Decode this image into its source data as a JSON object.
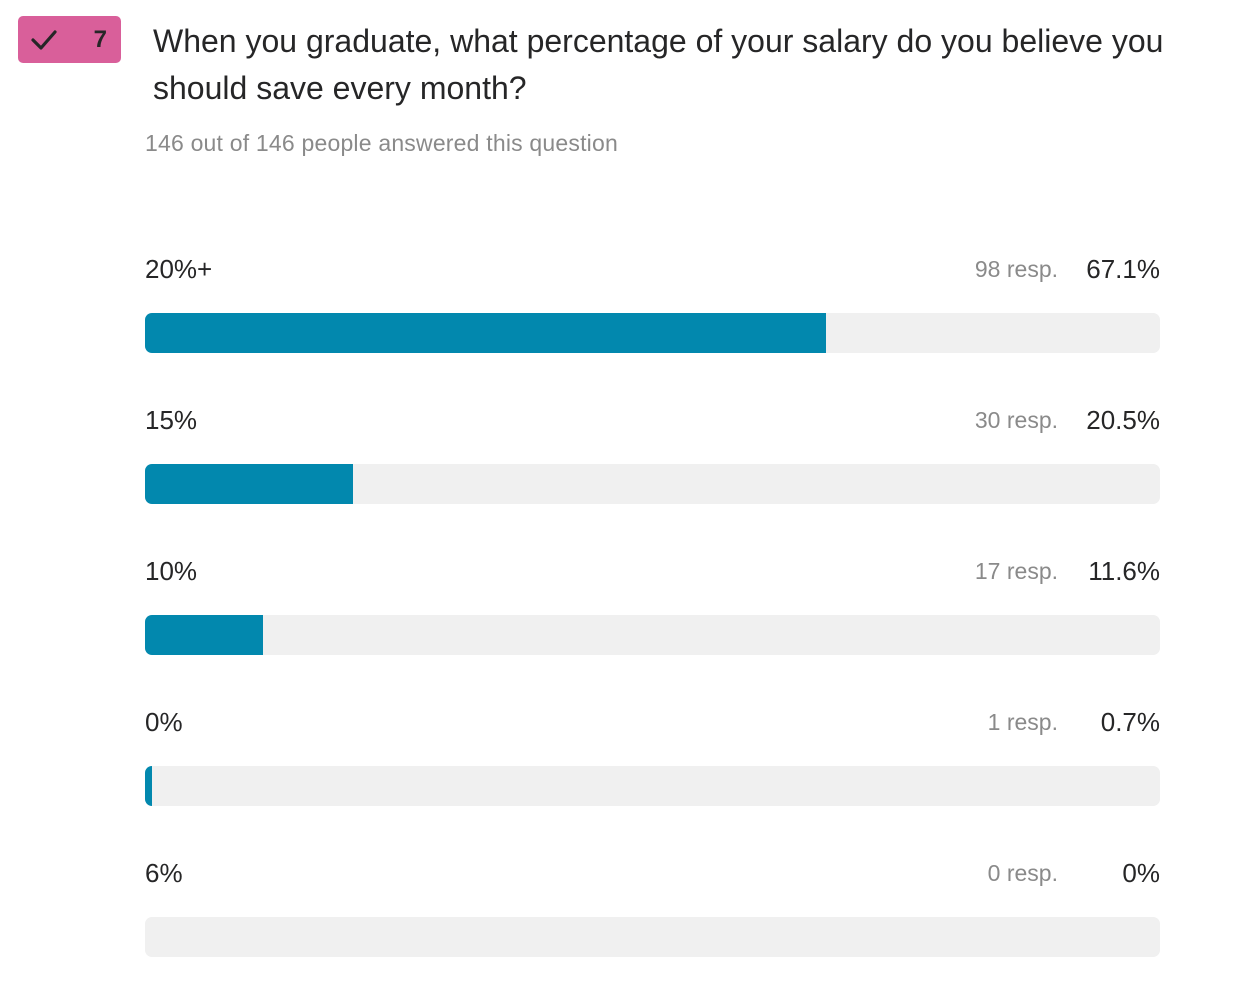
{
  "badge": {
    "number": "7",
    "icon": "check-icon",
    "color": "#D95F9A"
  },
  "question": {
    "text": "When you graduate, what percentage of your salary do you believe you should save every month?",
    "answered_text": "146 out of 146 people answered this question"
  },
  "colors": {
    "bar_fill": "#0288AE",
    "bar_track": "#F0F0F0"
  },
  "options": [
    {
      "label": "20%+",
      "resp": "98 resp.",
      "pct": "67.1%"
    },
    {
      "label": "15%",
      "resp": "30 resp.",
      "pct": "20.5%"
    },
    {
      "label": "10%",
      "resp": "17 resp.",
      "pct": "11.6%"
    },
    {
      "label": "0%",
      "resp": "1 resp.",
      "pct": "0.7%"
    },
    {
      "label": "6%",
      "resp": "0 resp.",
      "pct": "0%"
    }
  ],
  "chart_data": {
    "type": "bar",
    "orientation": "horizontal",
    "categories": [
      "20%+",
      "15%",
      "10%",
      "0%",
      "6%"
    ],
    "values": [
      67.1,
      20.5,
      11.6,
      0.7,
      0
    ],
    "responses": [
      98,
      30,
      17,
      1,
      0
    ],
    "xlim": [
      0,
      100
    ],
    "grid": false
  }
}
